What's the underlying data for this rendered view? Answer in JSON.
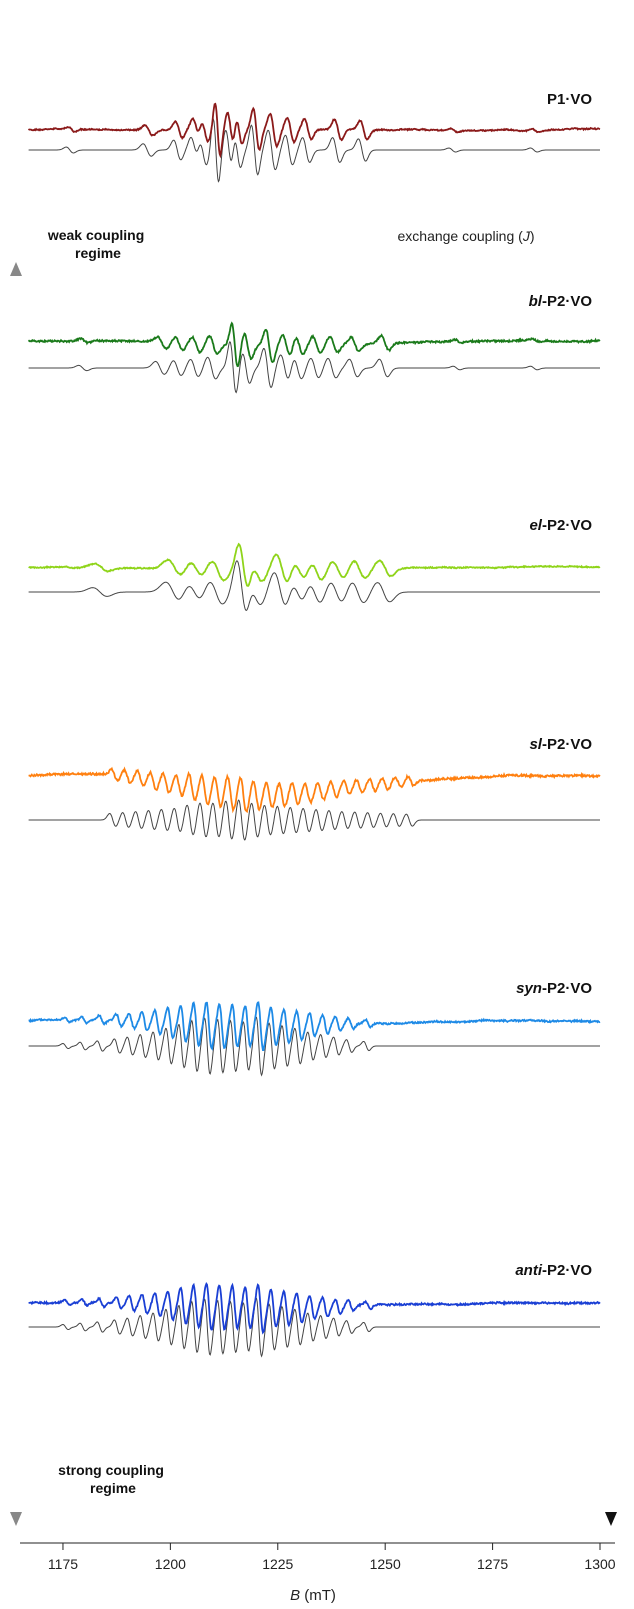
{
  "chart_data": {
    "type": "line",
    "xlabel_var": "B",
    "xlabel_unit": " (mT)",
    "xlim": [
      1165,
      1300
    ],
    "xticks": [
      1175,
      1200,
      1225,
      1250,
      1275,
      1300
    ],
    "annotations": {
      "weak_line1": "weak coupling",
      "weak_line2": "regime",
      "strong_line1": "strong coupling",
      "strong_line2": "regime",
      "exchange_pre": "exchange coupling (",
      "exchange_var": "J",
      "exchange_post": ")"
    },
    "series": [
      {
        "label_prefix": "",
        "label_suffix": "P1·VO",
        "color": "#8b1a1a",
        "seed": 1,
        "lines": [
          1177,
          1195,
          1202,
          1206,
          1208,
          1211,
          1214,
          1216,
          1220,
          1224,
          1228,
          1232,
          1239,
          1245
        ],
        "amps": [
          0.12,
          0.25,
          0.4,
          0.5,
          0.6,
          1.3,
          0.8,
          0.7,
          1.0,
          0.8,
          0.6,
          0.5,
          0.5,
          0.45
        ],
        "widths": [
          0.8,
          0.9,
          0.8,
          0.8,
          0.8,
          0.6,
          0.7,
          0.7,
          0.7,
          0.8,
          0.8,
          0.8,
          0.8,
          0.8
        ],
        "sim_extra": [
          1266,
          1285
        ],
        "broad": 0,
        "noise": 0.03,
        "scale": 68
      },
      {
        "label_prefix": "bl",
        "label_suffix": "-P2·VO",
        "color": "#1a7a1a",
        "seed": 2,
        "lines": [
          1180,
          1198,
          1202,
          1206,
          1210,
          1215,
          1218,
          1223,
          1227,
          1230,
          1234,
          1238,
          1243,
          1250
        ],
        "amps": [
          0.12,
          0.3,
          0.35,
          0.4,
          0.5,
          1.2,
          0.7,
          0.9,
          0.6,
          0.5,
          0.45,
          0.45,
          0.4,
          0.4
        ],
        "widths": [
          0.9,
          1.0,
          0.9,
          0.9,
          0.9,
          0.7,
          0.8,
          0.8,
          0.9,
          0.9,
          0.9,
          0.9,
          0.9,
          0.9
        ],
        "sim_extra": [
          1267,
          1285
        ],
        "broad": 0.08,
        "noise": 0.05,
        "scale": 60
      },
      {
        "label_prefix": "el",
        "label_suffix": "-P2·VO",
        "color": "#8fd41a",
        "seed": 3,
        "lines": [
          1184,
          1201,
          1206,
          1211,
          1217,
          1220,
          1226,
          1230,
          1234,
          1239,
          1244,
          1250
        ],
        "amps": [
          0.2,
          0.45,
          0.4,
          0.55,
          1.4,
          0.6,
          0.9,
          0.6,
          0.55,
          0.5,
          0.5,
          0.45
        ],
        "widths": [
          1.6,
          1.6,
          1.5,
          1.5,
          1.1,
          1.4,
          1.4,
          1.4,
          1.4,
          1.4,
          1.4,
          1.4
        ],
        "sim_extra": [],
        "broad": 0.05,
        "noise": 0.03,
        "scale": 60
      },
      {
        "label_prefix": "sl",
        "label_suffix": "-P2·VO",
        "color": "#ff8010",
        "seed": 4,
        "lines": [
          1187,
          1190,
          1193,
          1196,
          1199,
          1202,
          1205,
          1208,
          1211,
          1214,
          1217,
          1220,
          1223,
          1226,
          1229,
          1232,
          1235,
          1238,
          1241,
          1244,
          1247,
          1250,
          1253,
          1256
        ],
        "amps": [
          0.3,
          0.35,
          0.4,
          0.45,
          0.5,
          0.55,
          0.7,
          0.8,
          0.8,
          0.9,
          0.95,
          0.8,
          0.7,
          0.65,
          0.6,
          0.55,
          0.5,
          0.45,
          0.4,
          0.38,
          0.35,
          0.32,
          0.3,
          0.28
        ],
        "widths": [
          0.7,
          0.7,
          0.7,
          0.7,
          0.7,
          0.7,
          0.7,
          0.7,
          0.7,
          0.7,
          0.7,
          0.7,
          0.7,
          0.7,
          0.7,
          0.7,
          0.7,
          0.7,
          0.7,
          0.7,
          0.7,
          0.7,
          0.7,
          0.7
        ],
        "sim_extra": [],
        "broad": 0.35,
        "noise": 0.06,
        "scale": 60
      },
      {
        "label_prefix": "syn",
        "label_suffix": "-P2·VO",
        "color": "#1e8ae6",
        "seed": 5,
        "lines": [
          1176,
          1180,
          1184,
          1188,
          1191,
          1194,
          1197,
          1200,
          1203,
          1206,
          1209,
          1212,
          1215,
          1218,
          1221,
          1224,
          1227,
          1230,
          1233,
          1236,
          1239,
          1242,
          1246
        ],
        "amps": [
          0.1,
          0.15,
          0.2,
          0.28,
          0.35,
          0.45,
          0.55,
          0.7,
          0.85,
          1.0,
          1.1,
          1.05,
          1.0,
          0.95,
          1.15,
          0.9,
          0.8,
          0.7,
          0.55,
          0.45,
          0.35,
          0.25,
          0.18
        ],
        "widths": [
          0.6,
          0.6,
          0.6,
          0.6,
          0.6,
          0.6,
          0.6,
          0.6,
          0.6,
          0.6,
          0.6,
          0.6,
          0.6,
          0.6,
          0.6,
          0.6,
          0.6,
          0.6,
          0.6,
          0.6,
          0.6,
          0.6,
          0.6
        ],
        "sim_extra": [],
        "broad": 0.08,
        "noise": 0.04,
        "scale": 70
      },
      {
        "label_prefix": "anti",
        "label_suffix": "-P2·VO",
        "color": "#1a3fd4",
        "seed": 6,
        "lines": [
          1176,
          1180,
          1184,
          1188,
          1191,
          1194,
          1197,
          1200,
          1203,
          1206,
          1209,
          1212,
          1215,
          1218,
          1221,
          1224,
          1227,
          1230,
          1233,
          1236,
          1239,
          1242,
          1246
        ],
        "amps": [
          0.1,
          0.15,
          0.2,
          0.28,
          0.35,
          0.45,
          0.55,
          0.7,
          0.85,
          1.0,
          1.1,
          1.05,
          1.0,
          0.95,
          1.15,
          0.9,
          0.8,
          0.7,
          0.55,
          0.45,
          0.35,
          0.25,
          0.18
        ],
        "widths": [
          0.6,
          0.6,
          0.6,
          0.6,
          0.6,
          0.6,
          0.6,
          0.6,
          0.6,
          0.6,
          0.6,
          0.6,
          0.6,
          0.6,
          0.6,
          0.6,
          0.6,
          0.6,
          0.6,
          0.6,
          0.6,
          0.6,
          0.6
        ],
        "sim_extra": [],
        "broad": 0.08,
        "noise": 0.04,
        "scale": 70
      }
    ]
  }
}
